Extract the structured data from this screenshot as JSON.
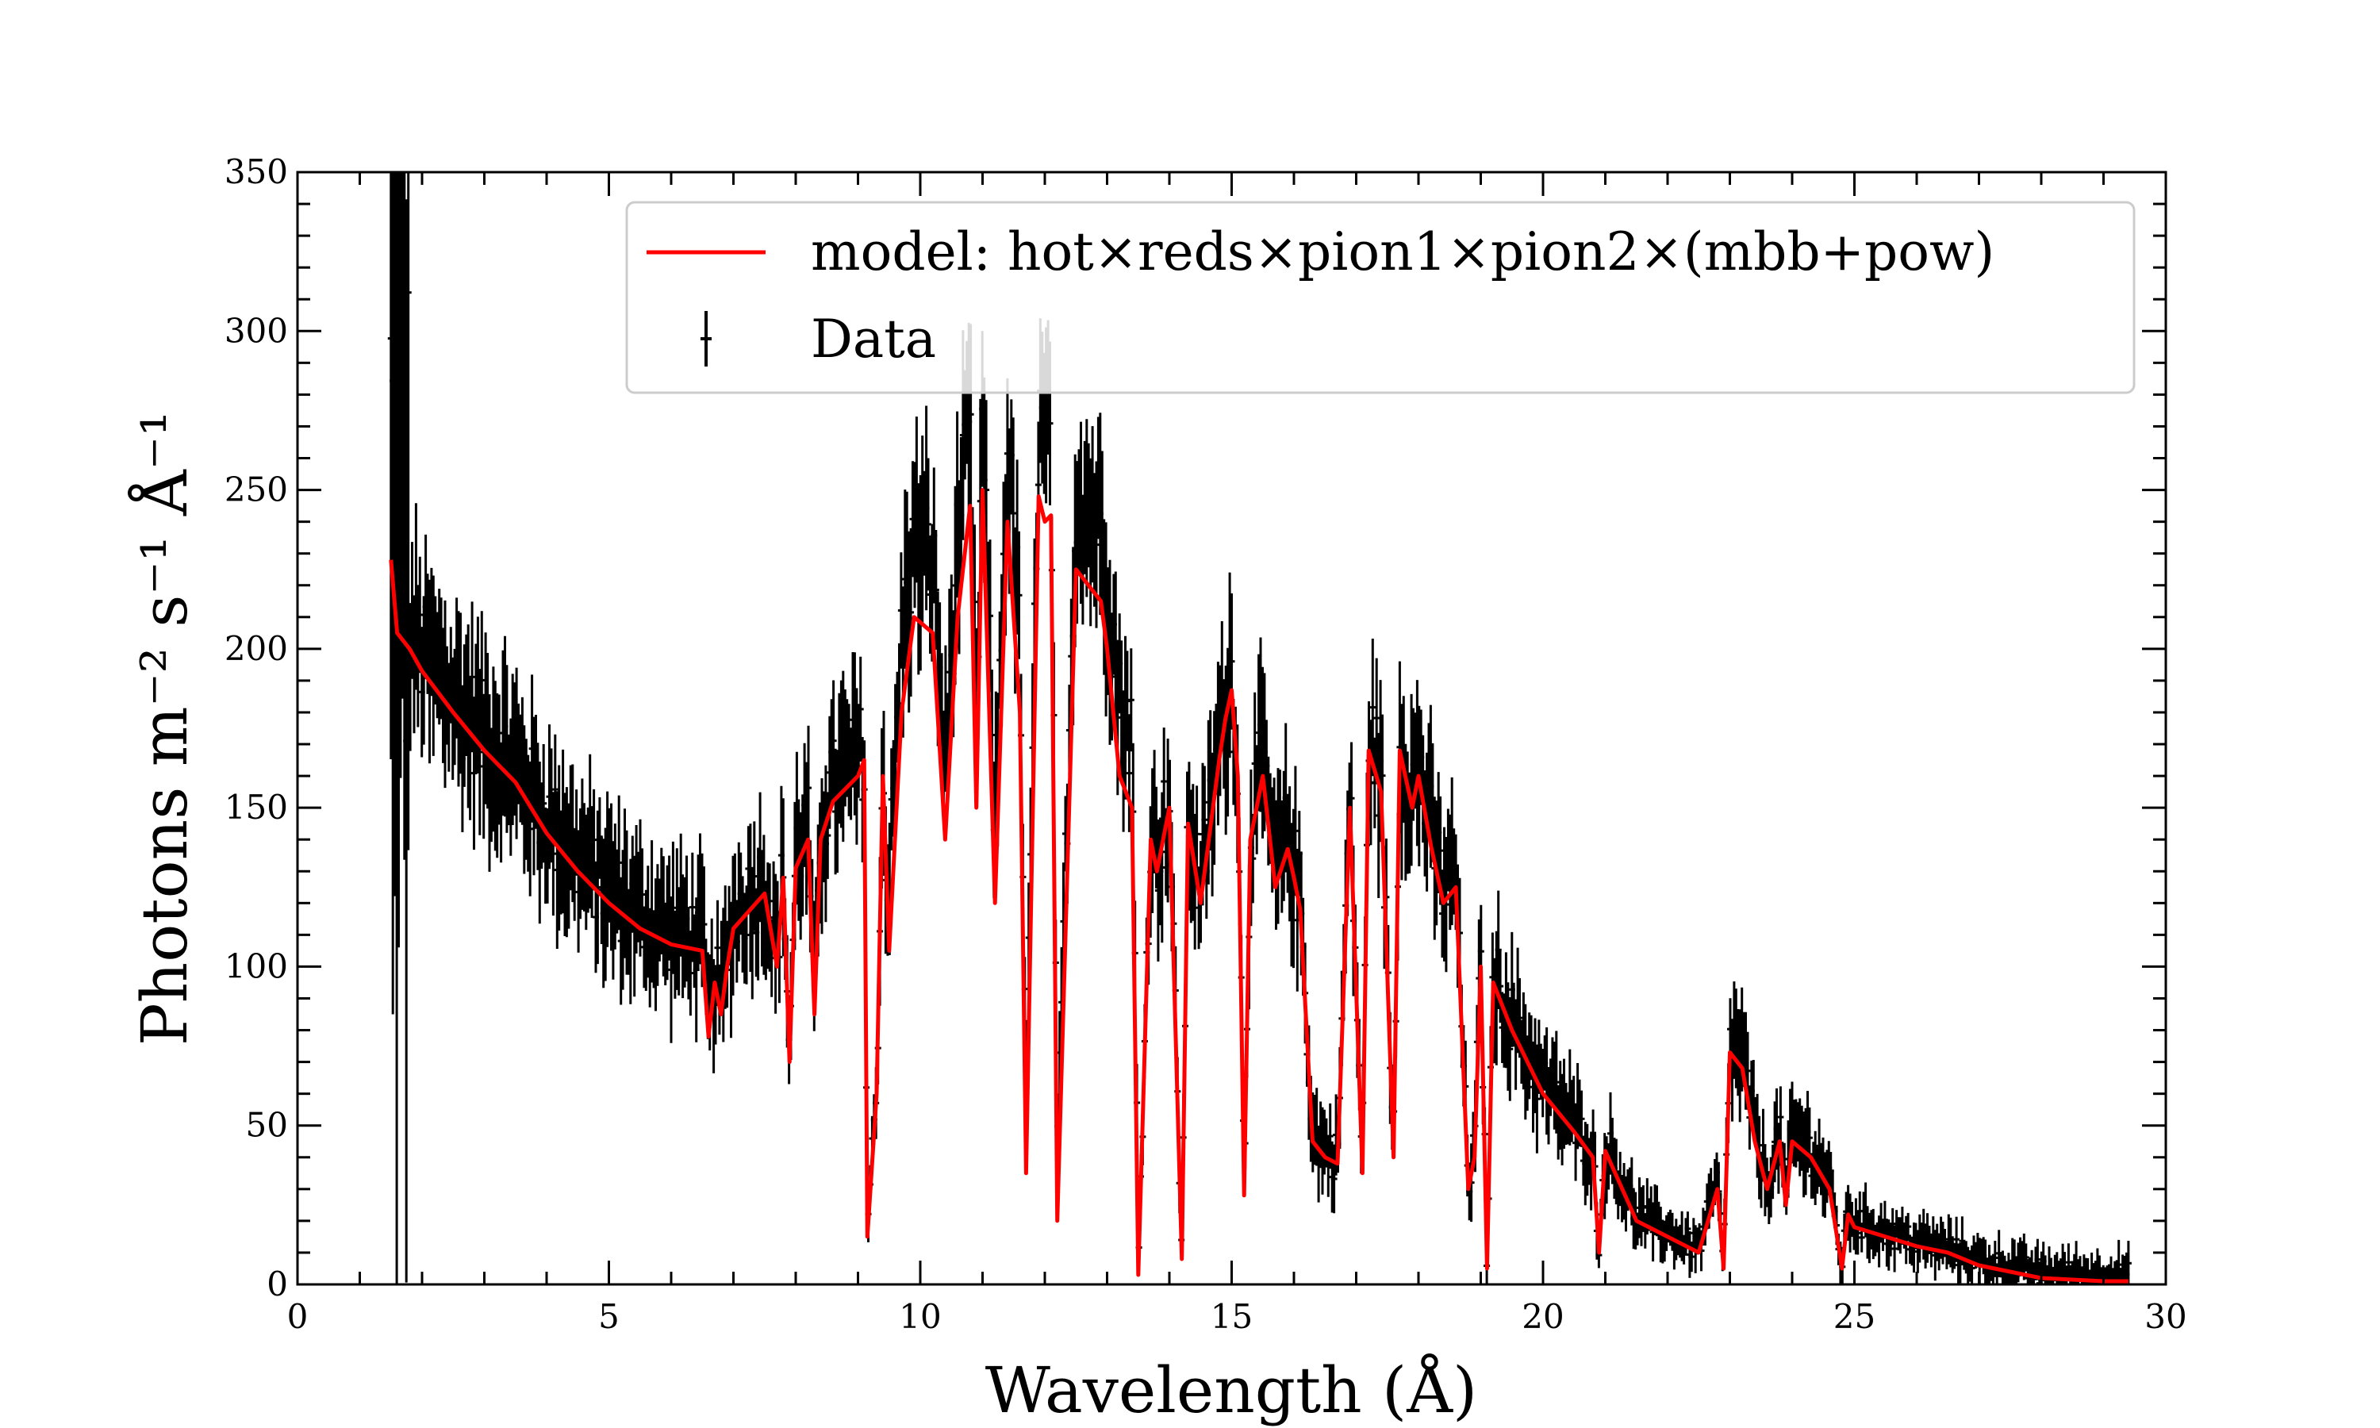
{
  "chart_data": {
    "type": "line",
    "title": "",
    "xlabel": "Wavelength (Å)",
    "ylabel": "Photons m⁻² s⁻¹ Å⁻¹",
    "xlim": [
      0,
      30
    ],
    "ylim": [
      0,
      350
    ],
    "xticks": [
      0,
      5,
      10,
      15,
      20,
      25,
      30
    ],
    "xtick_labels": [
      "0",
      "5",
      "10",
      "15",
      "20",
      "25",
      "30"
    ],
    "yticks": [
      0,
      50,
      100,
      150,
      200,
      250,
      300,
      350
    ],
    "ytick_labels": [
      "0",
      "50",
      "100",
      "150",
      "200",
      "250",
      "300",
      "350"
    ],
    "legend_position": "top-right",
    "grid": false,
    "series": [
      {
        "name": "model: hot×reds×pion1×pion2×(mbb+pow)",
        "color": "#ff0000",
        "style": "line",
        "x": [
          1.5,
          1.6,
          1.8,
          2.0,
          2.5,
          3.0,
          3.5,
          4.0,
          4.5,
          5.0,
          5.5,
          6.0,
          6.5,
          6.6,
          6.7,
          6.8,
          6.9,
          7.0,
          7.5,
          7.7,
          7.8,
          7.9,
          8.0,
          8.2,
          8.3,
          8.4,
          8.6,
          9.0,
          9.1,
          9.15,
          9.3,
          9.4,
          9.5,
          9.7,
          9.9,
          10.2,
          10.4,
          10.6,
          10.8,
          10.9,
          11.0,
          11.2,
          11.4,
          11.6,
          11.7,
          11.9,
          12.0,
          12.1,
          12.2,
          12.5,
          12.9,
          13.0,
          13.2,
          13.4,
          13.5,
          13.7,
          13.8,
          14.0,
          14.2,
          14.3,
          14.5,
          14.8,
          14.9,
          15.0,
          15.1,
          15.2,
          15.3,
          15.5,
          15.7,
          15.9,
          16.0,
          16.1,
          16.3,
          16.5,
          16.7,
          16.9,
          17.1,
          17.2,
          17.4,
          17.6,
          17.7,
          17.9,
          18.0,
          18.2,
          18.4,
          18.6,
          18.8,
          18.9,
          19.0,
          19.1,
          19.2,
          19.5,
          20.0,
          20.5,
          20.8,
          20.9,
          21.0,
          21.5,
          22.0,
          22.5,
          22.8,
          22.9,
          23.0,
          23.2,
          23.4,
          23.6,
          23.8,
          23.9,
          24.0,
          24.3,
          24.6,
          24.8,
          24.9,
          25.0,
          25.5,
          26.0,
          26.5,
          27.0,
          27.5,
          28.0,
          28.5,
          29.0,
          29.4
        ],
        "y": [
          228,
          205,
          200,
          193,
          180,
          168,
          158,
          142,
          130,
          120,
          112,
          107,
          105,
          78,
          95,
          85,
          100,
          112,
          123,
          100,
          128,
          70,
          131,
          140,
          85,
          140,
          152,
          160,
          165,
          15,
          60,
          160,
          105,
          180,
          210,
          205,
          140,
          210,
          245,
          150,
          250,
          120,
          240,
          180,
          35,
          248,
          240,
          242,
          20,
          225,
          215,
          200,
          160,
          150,
          3,
          140,
          130,
          150,
          8,
          145,
          120,
          165,
          178,
          187,
          160,
          28,
          140,
          160,
          125,
          137,
          128,
          118,
          45,
          40,
          38,
          150,
          35,
          168,
          155,
          40,
          168,
          150,
          160,
          138,
          120,
          125,
          30,
          40,
          100,
          5,
          95,
          80,
          60,
          48,
          40,
          10,
          42,
          20,
          15,
          10,
          30,
          5,
          73,
          68,
          45,
          30,
          45,
          25,
          45,
          40,
          30,
          5,
          22,
          18,
          15,
          12,
          10,
          6,
          4,
          2,
          1.5,
          1,
          1
        ]
      },
      {
        "name": "Data",
        "color": "#000000",
        "style": "errorbar"
      }
    ]
  }
}
